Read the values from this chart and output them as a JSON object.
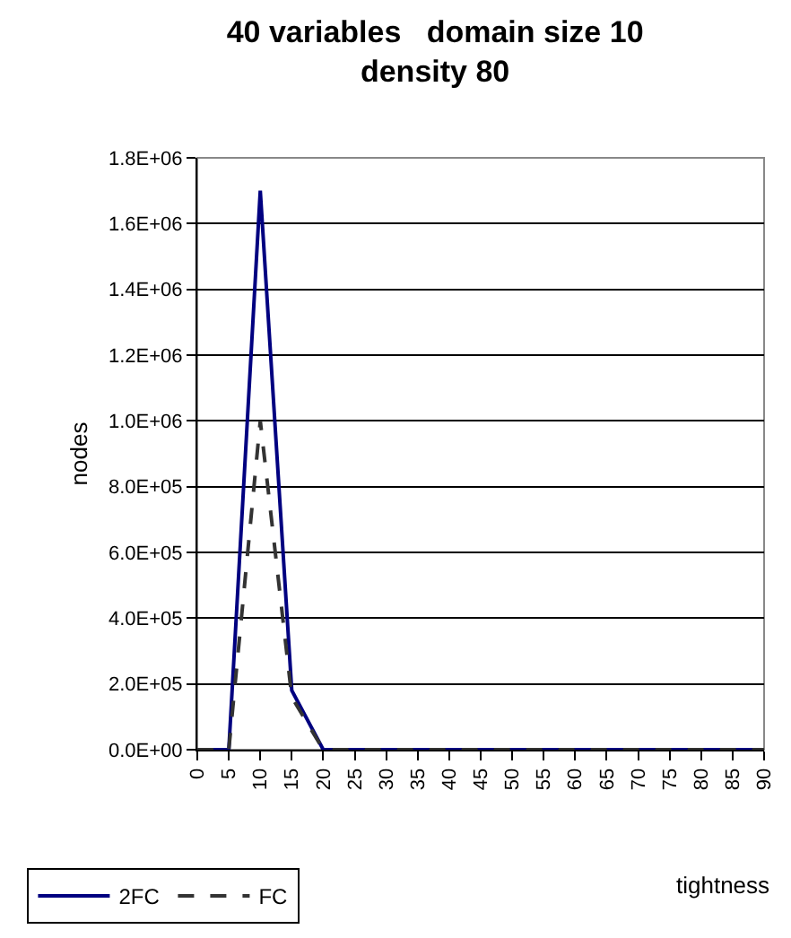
{
  "chart_data": {
    "type": "line",
    "title": "40 variables   domain size 10\ndensity 80",
    "xlabel": "tightness",
    "ylabel": "nodes",
    "categories": [
      "0",
      "5",
      "10",
      "15",
      "20",
      "25",
      "30",
      "35",
      "40",
      "45",
      "50",
      "55",
      "60",
      "65",
      "70",
      "75",
      "80",
      "85",
      "90"
    ],
    "series": [
      {
        "name": "2FC",
        "color": "#000080",
        "line_style": "solid",
        "values": [
          0,
          0,
          1700000,
          180000,
          0,
          0,
          0,
          0,
          0,
          0,
          0,
          0,
          0,
          0,
          0,
          0,
          0,
          0,
          0
        ]
      },
      {
        "name": "FC",
        "color": "#333333",
        "line_style": "dashed",
        "values": [
          0,
          0,
          1000000,
          160000,
          0,
          0,
          0,
          0,
          0,
          0,
          0,
          0,
          0,
          0,
          0,
          0,
          0,
          0,
          0
        ]
      }
    ],
    "ylim": [
      0,
      1800000
    ],
    "yticks": [
      {
        "value": 0,
        "label": "0.0E+00"
      },
      {
        "value": 200000,
        "label": "2.0E+05"
      },
      {
        "value": 400000,
        "label": "4.0E+05"
      },
      {
        "value": 600000,
        "label": "6.0E+05"
      },
      {
        "value": 800000,
        "label": "8.0E+05"
      },
      {
        "value": 1000000,
        "label": "1.0E+06"
      },
      {
        "value": 1200000,
        "label": "1.2E+06"
      },
      {
        "value": 1400000,
        "label": "1.4E+06"
      },
      {
        "value": 1600000,
        "label": "1.6E+06"
      },
      {
        "value": 1800000,
        "label": "1.8E+06"
      }
    ],
    "grid": "y",
    "legend": "bottom left",
    "marker": "none"
  }
}
